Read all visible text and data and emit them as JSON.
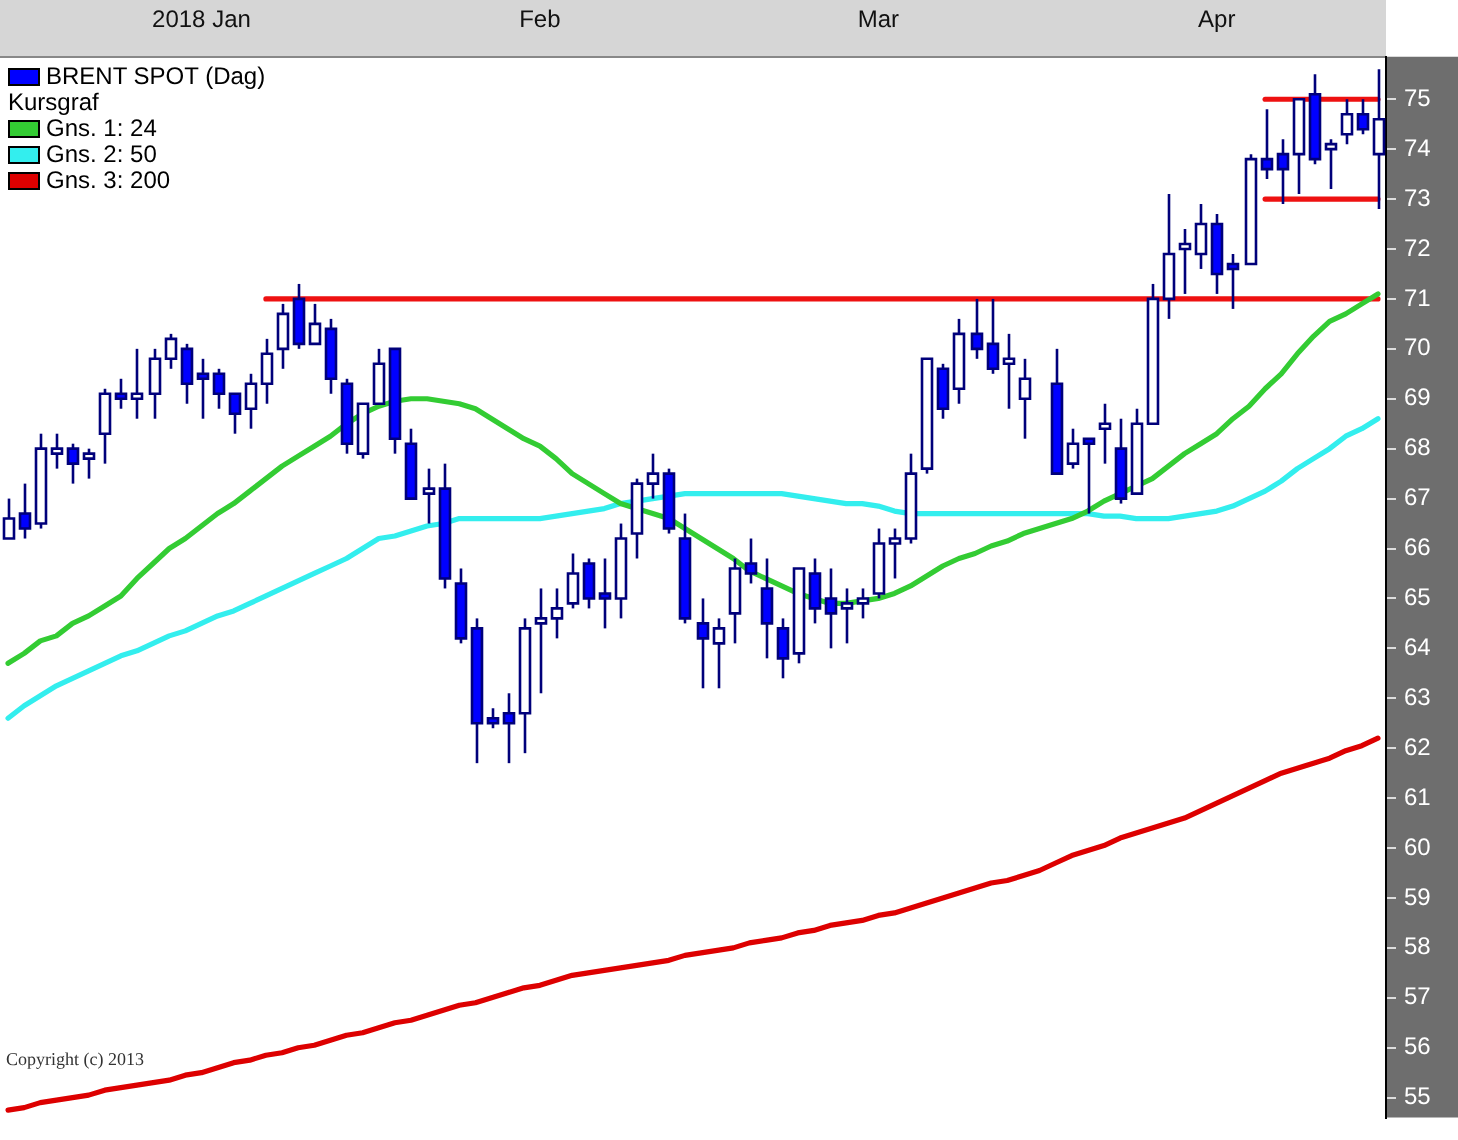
{
  "chart_data": {
    "type": "candlestick",
    "categories": [
      null,
      null,
      null,
      null,
      null,
      null,
      null,
      null,
      null,
      null,
      null,
      null,
      "2018 Jan",
      null,
      null,
      null,
      null,
      null,
      null,
      null,
      null,
      null,
      null,
      null,
      null,
      null,
      null,
      null,
      null,
      null,
      null,
      null,
      null,
      "Feb",
      null,
      null,
      null,
      null,
      null,
      null,
      null,
      null,
      null,
      null,
      null,
      null,
      null,
      null,
      null,
      null,
      null,
      null,
      null,
      null,
      "Mar",
      null,
      null,
      null,
      null,
      null,
      null,
      null,
      null,
      null,
      null,
      null,
      null,
      null,
      null,
      null,
      null,
      null,
      null,
      null,
      null,
      "Apr",
      null,
      null,
      null,
      null,
      null,
      null,
      null,
      null,
      null,
      null
    ],
    "ylim": [
      54.6,
      75.85
    ],
    "yticks": [
      55,
      56,
      57,
      58,
      59,
      60,
      61,
      62,
      63,
      64,
      65,
      66,
      67,
      68,
      69,
      70,
      71,
      72,
      73,
      74,
      75
    ],
    "grid": false,
    "legend": "top left",
    "legend_title": "Kursgraf",
    "annotations": [
      "Copyright (c) 2013"
    ],
    "series": [
      {
        "name": "BRENT SPOT (Dag)",
        "color": "#0000ff",
        "colors": [
          "#ffffff",
          "#0000ff",
          "#ffffff",
          "#ffffff",
          "#0000ff",
          "#ffffff",
          "#ffffff",
          "#0000ff",
          "#ffffff",
          "#ffffff",
          "#ffffff",
          "#0000ff",
          "#0000ff",
          "#0000ff",
          "#0000ff",
          "#ffffff",
          "#ffffff",
          "#ffffff",
          "#0000ff",
          "#ffffff",
          "#0000ff",
          "#0000ff",
          "#ffffff",
          "#ffffff",
          "#0000ff",
          "#0000ff",
          "#ffffff",
          "#0000ff",
          "#0000ff",
          "#0000ff",
          "#0000ff",
          "#0000ff",
          "#ffffff",
          "#ffffff",
          "#ffffff",
          "#ffffff",
          "#0000ff",
          "#0000ff",
          "#ffffff",
          "#ffffff",
          "#ffffff",
          "#0000ff",
          "#0000ff",
          "#0000ff",
          "#ffffff",
          "#ffffff",
          "#0000ff",
          "#0000ff",
          "#0000ff",
          "#ffffff",
          "#0000ff",
          "#0000ff",
          "#ffffff",
          "#ffffff",
          "#ffffff",
          "#ffffff",
          "#ffffff",
          "#ffffff",
          "#0000ff",
          "#ffffff",
          "#0000ff",
          "#0000ff",
          "#ffffff",
          "#ffffff",
          null,
          "#0000ff",
          "#ffffff",
          "#0000ff",
          "#ffffff",
          "#0000ff",
          "#ffffff",
          "#ffffff",
          "#ffffff",
          "#ffffff",
          "#ffffff",
          "#0000ff",
          "#0000ff",
          "#ffffff",
          "#0000ff",
          "#0000ff",
          "#ffffff",
          "#0000ff",
          "#ffffff",
          "#ffffff",
          "#0000ff",
          "#ffffff"
        ],
        "ohlc": [
          [
            66.2,
            67.0,
            66.2,
            66.6
          ],
          [
            66.7,
            67.3,
            66.2,
            66.4
          ],
          [
            66.5,
            68.3,
            66.4,
            68.0
          ],
          [
            67.9,
            68.3,
            67.6,
            68.0
          ],
          [
            68.0,
            68.1,
            67.3,
            67.7
          ],
          [
            67.8,
            68.0,
            67.4,
            67.9
          ],
          [
            68.3,
            69.2,
            67.7,
            69.1
          ],
          [
            69.1,
            69.4,
            68.8,
            69.0
          ],
          [
            69.0,
            70.0,
            68.6,
            69.1
          ],
          [
            69.1,
            70.0,
            68.6,
            69.8
          ],
          [
            69.8,
            70.3,
            69.6,
            70.2
          ],
          [
            70.0,
            70.1,
            68.9,
            69.3
          ],
          [
            69.5,
            69.8,
            68.6,
            69.4
          ],
          [
            69.5,
            69.6,
            68.8,
            69.1
          ],
          [
            69.1,
            69.1,
            68.3,
            68.7
          ],
          [
            68.8,
            69.5,
            68.4,
            69.3
          ],
          [
            69.3,
            70.2,
            68.9,
            69.9
          ],
          [
            70.0,
            70.9,
            69.6,
            70.7
          ],
          [
            71.0,
            71.3,
            70.0,
            70.1
          ],
          [
            70.1,
            70.9,
            70.1,
            70.5
          ],
          [
            70.4,
            70.6,
            69.1,
            69.4
          ],
          [
            69.3,
            69.4,
            67.9,
            68.1
          ],
          [
            67.9,
            68.9,
            67.8,
            68.9
          ],
          [
            68.9,
            70.0,
            68.9,
            69.7
          ],
          [
            70.0,
            70.0,
            67.9,
            68.2
          ],
          [
            68.1,
            68.4,
            67.0,
            67.0
          ],
          [
            67.1,
            67.6,
            66.5,
            67.2
          ],
          [
            67.2,
            67.7,
            65.2,
            65.4
          ],
          [
            65.3,
            65.6,
            64.1,
            64.2
          ],
          [
            64.4,
            64.6,
            61.7,
            62.5
          ],
          [
            62.6,
            62.8,
            62.4,
            62.5
          ],
          [
            62.7,
            63.1,
            61.7,
            62.5
          ],
          [
            62.7,
            64.6,
            61.9,
            64.4
          ],
          [
            64.5,
            65.2,
            63.1,
            64.6
          ],
          [
            64.6,
            65.2,
            64.2,
            64.8
          ],
          [
            64.9,
            65.9,
            64.8,
            65.5
          ],
          [
            65.7,
            65.8,
            64.8,
            65.0
          ],
          [
            65.1,
            65.8,
            64.4,
            65.0
          ],
          [
            65.0,
            66.5,
            64.6,
            66.2
          ],
          [
            66.3,
            67.4,
            65.8,
            67.3
          ],
          [
            67.3,
            67.9,
            67.0,
            67.5
          ],
          [
            67.5,
            67.6,
            66.3,
            66.4
          ],
          [
            66.2,
            66.7,
            64.5,
            64.6
          ],
          [
            64.5,
            65.0,
            63.2,
            64.2
          ],
          [
            64.1,
            64.6,
            63.2,
            64.4
          ],
          [
            64.7,
            65.8,
            64.1,
            65.6
          ],
          [
            65.7,
            66.2,
            65.3,
            65.5
          ],
          [
            65.2,
            65.8,
            63.8,
            64.5
          ],
          [
            64.4,
            64.6,
            63.4,
            63.8
          ],
          [
            63.9,
            65.6,
            63.7,
            65.6
          ],
          [
            65.5,
            65.8,
            64.5,
            64.8
          ],
          [
            65.0,
            65.6,
            64.0,
            64.7
          ],
          [
            64.8,
            65.2,
            64.1,
            64.9
          ],
          [
            64.9,
            65.2,
            64.6,
            65.0
          ],
          [
            65.1,
            66.4,
            65.0,
            66.1
          ],
          [
            66.1,
            66.4,
            65.4,
            66.2
          ],
          [
            66.2,
            67.9,
            66.1,
            67.5
          ],
          [
            67.6,
            69.8,
            67.5,
            69.8
          ],
          [
            69.6,
            69.7,
            68.6,
            68.8
          ],
          [
            69.2,
            70.6,
            68.9,
            70.3
          ],
          [
            70.3,
            71.0,
            69.8,
            70.0
          ],
          [
            70.1,
            71.0,
            69.5,
            69.6
          ],
          [
            69.7,
            70.3,
            68.8,
            69.8
          ],
          [
            69.0,
            69.8,
            68.2,
            69.4
          ],
          null,
          [
            69.3,
            70.0,
            67.5,
            67.5
          ],
          [
            67.7,
            68.4,
            67.6,
            68.1
          ],
          [
            68.2,
            68.2,
            66.7,
            68.1
          ],
          [
            68.4,
            68.9,
            67.7,
            68.5
          ],
          [
            68.0,
            68.6,
            66.9,
            67.0
          ],
          [
            67.1,
            68.8,
            67.1,
            68.5
          ],
          [
            68.5,
            71.3,
            68.5,
            71.0
          ],
          [
            71.0,
            73.1,
            70.6,
            71.9
          ],
          [
            72.0,
            72.4,
            71.1,
            72.1
          ],
          [
            71.9,
            72.9,
            71.6,
            72.5
          ],
          [
            72.5,
            72.7,
            71.1,
            71.5
          ],
          [
            71.7,
            71.9,
            70.8,
            71.6
          ],
          [
            71.7,
            73.9,
            71.7,
            73.8
          ],
          [
            73.8,
            74.8,
            73.4,
            73.6
          ],
          [
            73.9,
            74.2,
            72.9,
            73.6
          ],
          [
            73.9,
            75.0,
            73.1,
            75.0
          ],
          [
            75.1,
            75.5,
            73.7,
            73.8
          ],
          [
            74.0,
            74.2,
            73.2,
            74.1
          ],
          [
            74.3,
            75.0,
            74.1,
            74.7
          ],
          [
            74.7,
            75.0,
            74.3,
            74.4
          ],
          [
            73.9,
            75.6,
            72.8,
            74.6
          ]
        ]
      },
      {
        "name": "Gns. 1: 24",
        "type": "line",
        "color": "#33cc33",
        "values": [
          63.7,
          63.9,
          64.15,
          64.25,
          64.5,
          64.65,
          64.85,
          65.05,
          65.4,
          65.7,
          66.0,
          66.2,
          66.45,
          66.7,
          66.9,
          67.15,
          67.4,
          67.65,
          67.85,
          68.05,
          68.25,
          68.5,
          68.7,
          68.85,
          68.95,
          69.0,
          69.0,
          68.95,
          68.9,
          68.8,
          68.6,
          68.4,
          68.2,
          68.05,
          67.8,
          67.5,
          67.3,
          67.1,
          66.9,
          66.8,
          66.7,
          66.6,
          66.4,
          66.2,
          66.0,
          65.8,
          65.55,
          65.4,
          65.25,
          65.1,
          65.0,
          64.9,
          64.9,
          64.95,
          65.0,
          65.1,
          65.25,
          65.45,
          65.65,
          65.8,
          65.9,
          66.05,
          66.15,
          66.3,
          66.4,
          66.5,
          66.6,
          66.75,
          66.95,
          67.1,
          67.25,
          67.4,
          67.65,
          67.9,
          68.1,
          68.3,
          68.6,
          68.85,
          69.2,
          69.5,
          69.9,
          70.25,
          70.55,
          70.7,
          70.9,
          71.1
        ]
      },
      {
        "name": "Gns. 2: 50",
        "type": "line",
        "color": "#33eeee",
        "values": [
          62.6,
          62.85,
          63.05,
          63.25,
          63.4,
          63.55,
          63.7,
          63.85,
          63.95,
          64.1,
          64.25,
          64.35,
          64.5,
          64.65,
          64.75,
          64.9,
          65.05,
          65.2,
          65.35,
          65.5,
          65.65,
          65.8,
          66.0,
          66.2,
          66.25,
          66.35,
          66.45,
          66.5,
          66.6,
          66.6,
          66.6,
          66.6,
          66.6,
          66.6,
          66.65,
          66.7,
          66.75,
          66.8,
          66.9,
          66.95,
          67.0,
          67.05,
          67.1,
          67.1,
          67.1,
          67.1,
          67.1,
          67.1,
          67.1,
          67.05,
          67.0,
          66.95,
          66.9,
          66.9,
          66.85,
          66.75,
          66.7,
          66.7,
          66.7,
          66.7,
          66.7,
          66.7,
          66.7,
          66.7,
          66.7,
          66.7,
          66.7,
          66.7,
          66.65,
          66.65,
          66.6,
          66.6,
          66.6,
          66.65,
          66.7,
          66.75,
          66.85,
          67.0,
          67.15,
          67.35,
          67.6,
          67.8,
          68.0,
          68.25,
          68.4,
          68.6
        ]
      },
      {
        "name": "Gns. 3: 200",
        "type": "line",
        "color": "#dd0000",
        "values": [
          54.75,
          54.8,
          54.9,
          54.95,
          55.0,
          55.05,
          55.15,
          55.2,
          55.25,
          55.3,
          55.35,
          55.45,
          55.5,
          55.6,
          55.7,
          55.75,
          55.85,
          55.9,
          56.0,
          56.05,
          56.15,
          56.25,
          56.3,
          56.4,
          56.5,
          56.55,
          56.65,
          56.75,
          56.85,
          56.9,
          57.0,
          57.1,
          57.2,
          57.25,
          57.35,
          57.45,
          57.5,
          57.55,
          57.6,
          57.65,
          57.7,
          57.75,
          57.85,
          57.9,
          57.95,
          58.0,
          58.1,
          58.15,
          58.2,
          58.3,
          58.35,
          58.45,
          58.5,
          58.55,
          58.65,
          58.7,
          58.8,
          58.9,
          59.0,
          59.1,
          59.2,
          59.3,
          59.35,
          59.45,
          59.55,
          59.7,
          59.85,
          59.95,
          60.05,
          60.2,
          60.3,
          60.4,
          60.5,
          60.6,
          60.75,
          60.9,
          61.05,
          61.2,
          61.35,
          61.5,
          61.6,
          61.7,
          61.8,
          61.95,
          62.05,
          62.2
        ]
      },
      {
        "type": "line",
        "color": "#ee1111",
        "values": [
          null,
          null,
          null,
          null,
          null,
          null,
          null,
          null,
          null,
          null,
          null,
          null,
          null,
          null,
          null,
          null,
          71,
          71,
          71,
          71,
          71,
          71,
          71,
          71,
          71,
          71,
          71,
          71,
          71,
          71,
          71,
          71,
          71,
          71,
          71,
          71,
          71,
          71,
          71,
          71,
          71,
          71,
          71,
          71,
          71,
          71,
          71,
          71,
          71,
          71,
          71,
          71,
          71,
          71,
          71,
          71,
          71,
          71,
          71,
          71,
          71,
          71,
          71,
          71,
          71,
          71,
          71,
          71,
          71,
          71,
          71,
          71,
          71,
          71,
          71,
          71,
          71,
          71,
          71,
          71,
          71,
          71,
          71,
          71,
          71,
          71
        ]
      },
      {
        "type": "line",
        "color": "#ee1111",
        "values": [
          null,
          null,
          null,
          null,
          null,
          null,
          null,
          null,
          null,
          null,
          null,
          null,
          null,
          null,
          null,
          null,
          null,
          null,
          null,
          null,
          null,
          null,
          null,
          null,
          null,
          null,
          null,
          null,
          null,
          null,
          null,
          null,
          null,
          null,
          null,
          null,
          null,
          null,
          null,
          null,
          null,
          null,
          null,
          null,
          null,
          null,
          null,
          null,
          null,
          null,
          null,
          null,
          null,
          null,
          null,
          null,
          null,
          null,
          null,
          null,
          null,
          null,
          null,
          null,
          null,
          null,
          null,
          null,
          null,
          null,
          null,
          null,
          null,
          null,
          null,
          null,
          null,
          null,
          75,
          75,
          75,
          75,
          75,
          75,
          75,
          75
        ]
      },
      {
        "type": "line",
        "color": "#ee1111",
        "values": [
          null,
          null,
          null,
          null,
          null,
          null,
          null,
          null,
          null,
          null,
          null,
          null,
          null,
          null,
          null,
          null,
          null,
          null,
          null,
          null,
          null,
          null,
          null,
          null,
          null,
          null,
          null,
          null,
          null,
          null,
          null,
          null,
          null,
          null,
          null,
          null,
          null,
          null,
          null,
          null,
          null,
          null,
          null,
          null,
          null,
          null,
          null,
          null,
          null,
          null,
          null,
          null,
          null,
          null,
          null,
          null,
          null,
          null,
          null,
          null,
          null,
          null,
          null,
          null,
          null,
          null,
          null,
          null,
          null,
          null,
          null,
          null,
          null,
          null,
          null,
          null,
          null,
          null,
          73,
          73,
          73,
          73,
          73,
          73,
          73,
          73
        ]
      }
    ]
  }
}
